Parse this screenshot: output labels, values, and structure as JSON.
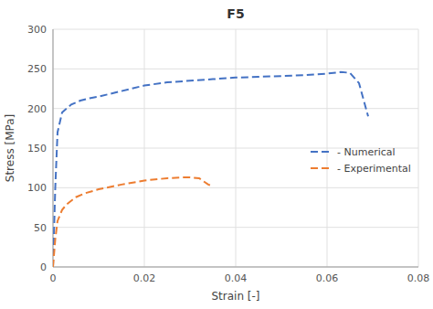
{
  "chart_data": {
    "type": "line",
    "title": "F5",
    "xlabel": "Strain [-]",
    "ylabel": "Stress [MPa]",
    "xlim": [
      0,
      0.08
    ],
    "ylim": [
      0,
      300
    ],
    "xticks": [
      0,
      0.02,
      0.04,
      0.06,
      0.08
    ],
    "yticks": [
      0,
      50,
      100,
      150,
      200,
      250,
      300
    ],
    "grid": true,
    "legend": "right",
    "series": [
      {
        "name": "- Numerical",
        "color": "#4472C4",
        "line_style": "dashed",
        "x": [
          0.0,
          0.0005,
          0.001,
          0.002,
          0.004,
          0.006,
          0.008,
          0.01,
          0.015,
          0.02,
          0.025,
          0.03,
          0.035,
          0.04,
          0.045,
          0.05,
          0.055,
          0.06,
          0.063,
          0.065,
          0.067,
          0.069
        ],
        "values": [
          0,
          100,
          170,
          195,
          205,
          210,
          213,
          215,
          222,
          229,
          233,
          235,
          237,
          239,
          240,
          241,
          242,
          244,
          246,
          245,
          232,
          190
        ]
      },
      {
        "name": "- Experimental",
        "color": "#ED7D31",
        "line_style": "dashed",
        "x": [
          0.0,
          0.0005,
          0.001,
          0.002,
          0.003,
          0.005,
          0.007,
          0.01,
          0.015,
          0.02,
          0.025,
          0.028,
          0.03,
          0.032,
          0.034,
          0.035
        ],
        "values": [
          0,
          35,
          58,
          72,
          79,
          88,
          93,
          98,
          104,
          109,
          112,
          113,
          113,
          112,
          104,
          102
        ]
      }
    ]
  }
}
